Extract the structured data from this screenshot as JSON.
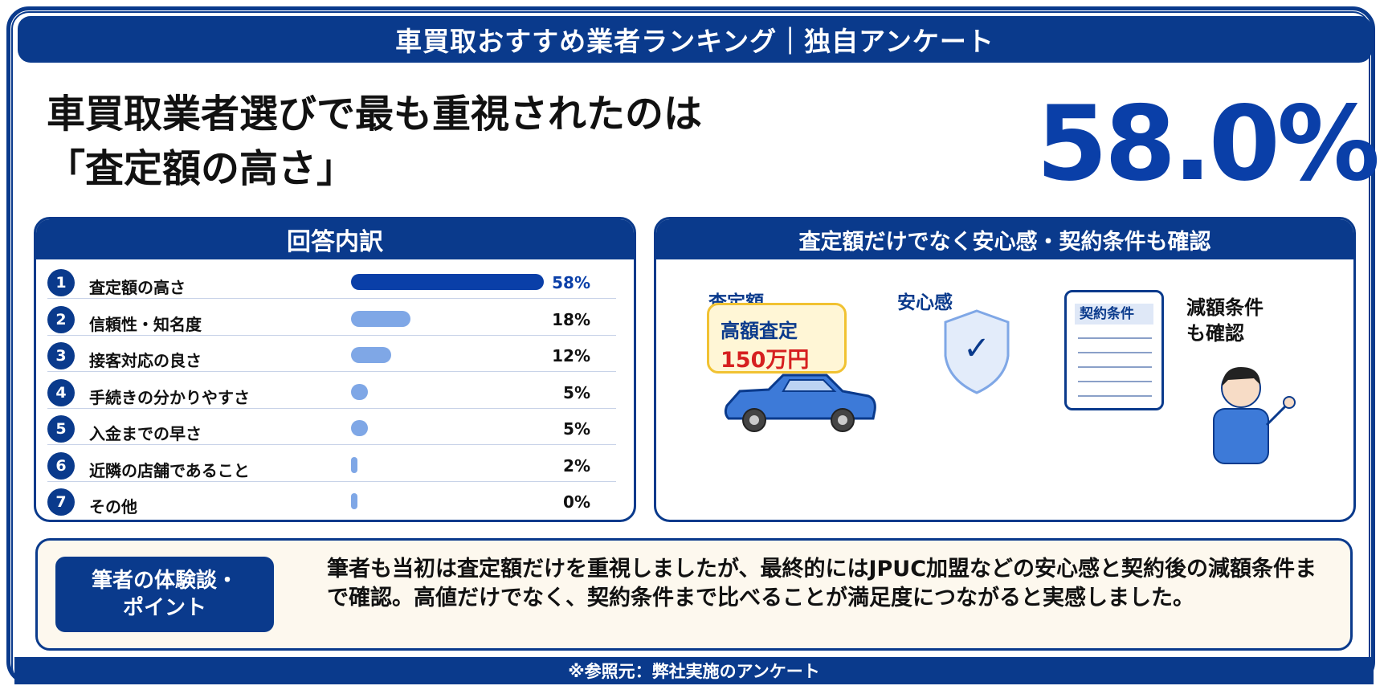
{
  "banner": {
    "title": "車買取おすすめ業者ランキング｜独自アンケート"
  },
  "headline": {
    "line1": "車買取業者選びで最も重視されたのは",
    "line2": "「査定額の高さ」"
  },
  "highlight": {
    "value": "58.0%"
  },
  "breakdown": {
    "title": "回答内訳"
  },
  "chart_data": {
    "type": "bar",
    "orientation": "horizontal",
    "title": "回答内訳",
    "categories": [
      "査定額の高さ",
      "信頼性・知名度",
      "接客対応の良さ",
      "手続きの分かりやすさ",
      "入金までの早さ",
      "近隣の店舗であること",
      "その他"
    ],
    "values": [
      58,
      18,
      12,
      5,
      5,
      2,
      0
    ],
    "value_labels": [
      "58%",
      "18%",
      "12%",
      "5%",
      "5%",
      "2%",
      "0%"
    ],
    "ranks": [
      "1",
      "2",
      "3",
      "4",
      "5",
      "6",
      "7"
    ],
    "xlim": [
      0,
      58
    ],
    "colors": {
      "top": "#0a3fa8",
      "other": "#7fa7e6"
    }
  },
  "illustration": {
    "title": "査定額だけでなく安心感・契約条件も確認",
    "price_label": "査定額",
    "price_box_title": "高額査定",
    "price_box_value": "150万円",
    "safety_label": "安心感",
    "check_mark": "✓",
    "document_title": "契約条件",
    "reduction_line1": "減額条件",
    "reduction_line2": "も確認"
  },
  "note": {
    "tag_line1": "筆者の体験談・",
    "tag_line2": "ポイント",
    "text": "筆者も当初は査定額だけを重視しましたが、最終的にはJPUC加盟などの安心感と契約後の減額条件まで確認。高値だけでなく、契約条件まで比べることが満足度につながると実感しました。"
  },
  "footer": {
    "source": "※参照元：弊社実施のアンケート"
  },
  "colors": {
    "navy": "#0a3a8c",
    "accent_blue": "#0a3fa8",
    "light_bar": "#7fa7e6",
    "price_red": "#d62020",
    "price_border": "#f1c232"
  }
}
